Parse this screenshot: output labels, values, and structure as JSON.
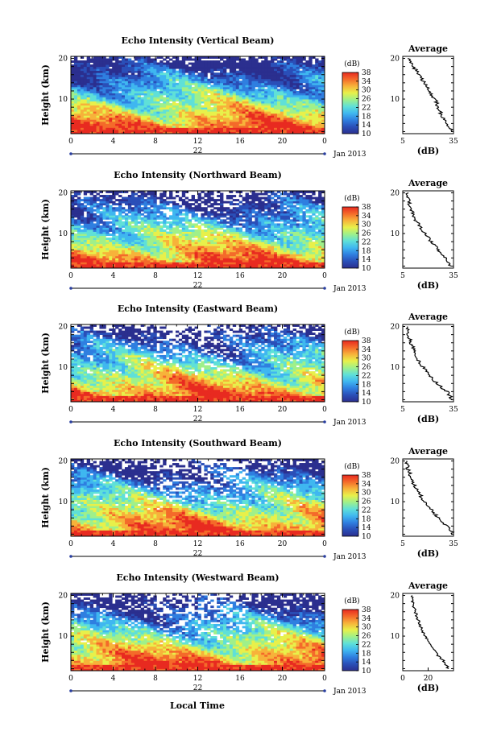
{
  "figure": {
    "x_axis_title": "Local Time",
    "day_label": "22",
    "month_year": "Jan 2013",
    "height_axis_title": "Height (km)",
    "colorbar_unit": "(dB)",
    "colorbar_ticks": [
      "10",
      "14",
      "18",
      "22",
      "26",
      "30",
      "34",
      "38"
    ],
    "average_title": "Average",
    "average_xlabel": "(dB)"
  },
  "colors": {
    "colormap": [
      "#2b2f8f",
      "#2a4fb8",
      "#2f7fe0",
      "#3fb7f0",
      "#5fe0d8",
      "#9ff08a",
      "#e8f04a",
      "#f7b23a",
      "#f46a2a",
      "#e82a20"
    ]
  },
  "chart_data": [
    {
      "type": "heatmap",
      "title": "Echo Intensity (Vertical Beam)",
      "xlabel": "Local Time",
      "ylabel": "Height (km)",
      "x_ticks": [
        "0",
        "4",
        "8",
        "12",
        "16",
        "20",
        "0"
      ],
      "y_ticks": [
        "10",
        "20"
      ],
      "xlim": [
        0,
        24
      ],
      "ylim": [
        1.5,
        20.5
      ],
      "colorbar": {
        "label": "(dB)",
        "range": [
          10,
          38
        ],
        "ticks": [
          10,
          14,
          18,
          22,
          26,
          30,
          34,
          38
        ]
      },
      "gaps": "few",
      "average_profile": {
        "title": "Average",
        "xlabel": "(dB)",
        "x_ticks": [
          "5",
          "35"
        ],
        "xlim": [
          5,
          35
        ],
        "height_km": [
          2,
          3,
          4,
          5,
          6,
          7,
          8,
          9,
          10,
          11,
          12,
          13,
          14,
          15,
          16,
          17,
          18,
          19,
          20
        ],
        "db": [
          35,
          33,
          31,
          29,
          28,
          27,
          26,
          25,
          24,
          22,
          21,
          20,
          18,
          16,
          15,
          13,
          11,
          10,
          8
        ]
      }
    },
    {
      "type": "heatmap",
      "title": "Echo Intensity (Northward Beam)",
      "xlabel": "Local Time",
      "ylabel": "Height (km)",
      "x_ticks": [
        "0",
        "4",
        "8",
        "12",
        "16",
        "20",
        "0"
      ],
      "y_ticks": [
        "10",
        "20"
      ],
      "xlim": [
        0,
        24
      ],
      "ylim": [
        1.5,
        20.5
      ],
      "colorbar": {
        "label": "(dB)",
        "range": [
          10,
          38
        ],
        "ticks": [
          10,
          14,
          18,
          22,
          26,
          30,
          34,
          38
        ]
      },
      "gaps": "some",
      "average_profile": {
        "title": "Average",
        "xlabel": "(dB)",
        "x_ticks": [
          "5",
          "35"
        ],
        "xlim": [
          5,
          35
        ],
        "height_km": [
          2,
          3,
          4,
          5,
          6,
          7,
          8,
          9,
          10,
          11,
          12,
          13,
          14,
          15,
          16,
          17,
          18,
          19,
          20
        ],
        "db": [
          33,
          32,
          31,
          28,
          26,
          24,
          22,
          20,
          18,
          16,
          15,
          13,
          12,
          11,
          10,
          9,
          9,
          8,
          8
        ]
      }
    },
    {
      "type": "heatmap",
      "title": "Echo Intensity (Eastward Beam)",
      "xlabel": "Local Time",
      "ylabel": "Height (km)",
      "x_ticks": [
        "0",
        "4",
        "8",
        "12",
        "16",
        "20",
        "0"
      ],
      "y_ticks": [
        "10",
        "20"
      ],
      "xlim": [
        0,
        24
      ],
      "ylim": [
        1.5,
        20.5
      ],
      "colorbar": {
        "label": "(dB)",
        "range": [
          10,
          38
        ],
        "ticks": [
          10,
          14,
          18,
          22,
          26,
          30,
          34,
          38
        ]
      },
      "gaps": "many",
      "average_profile": {
        "title": "Average",
        "xlabel": "(dB)",
        "x_ticks": [
          "5",
          "35"
        ],
        "xlim": [
          5,
          35
        ],
        "height_km": [
          2,
          3,
          4,
          5,
          6,
          7,
          8,
          9,
          10,
          11,
          12,
          13,
          14,
          15,
          16,
          17,
          18,
          19,
          20
        ],
        "db": [
          34,
          33,
          31,
          28,
          25,
          23,
          21,
          19,
          17,
          15,
          14,
          13,
          12,
          11,
          10,
          9,
          8,
          8,
          7
        ]
      }
    },
    {
      "type": "heatmap",
      "title": "Echo Intensity (Southward Beam)",
      "xlabel": "Local Time",
      "ylabel": "Height (km)",
      "x_ticks": [
        "0",
        "4",
        "8",
        "12",
        "16",
        "20",
        "0"
      ],
      "y_ticks": [
        "10",
        "20"
      ],
      "xlim": [
        0,
        24
      ],
      "ylim": [
        1.5,
        20.5
      ],
      "colorbar": {
        "label": "(dB)",
        "range": [
          10,
          38
        ],
        "ticks": [
          10,
          14,
          18,
          22,
          26,
          30,
          34,
          38
        ]
      },
      "gaps": "many",
      "average_profile": {
        "title": "Average",
        "xlabel": "(dB)",
        "x_ticks": [
          "5",
          "35"
        ],
        "xlim": [
          5,
          35
        ],
        "height_km": [
          2,
          3,
          4,
          5,
          6,
          7,
          8,
          9,
          10,
          11,
          12,
          13,
          14,
          15,
          16,
          17,
          18,
          19,
          20
        ],
        "db": [
          35,
          33,
          31,
          28,
          26,
          24,
          22,
          20,
          18,
          16,
          15,
          13,
          12,
          11,
          10,
          9,
          8,
          8,
          7
        ]
      }
    },
    {
      "type": "heatmap",
      "title": "Echo Intensity (Westward Beam)",
      "xlabel": "Local Time",
      "ylabel": "Height (km)",
      "x_ticks": [
        "0",
        "4",
        "8",
        "12",
        "16",
        "20",
        "0"
      ],
      "y_ticks": [
        "10",
        "20"
      ],
      "xlim": [
        0,
        24
      ],
      "ylim": [
        1.5,
        20.5
      ],
      "colorbar": {
        "label": "(dB)",
        "range": [
          10,
          38
        ],
        "ticks": [
          10,
          14,
          18,
          22,
          26,
          30,
          34,
          38
        ]
      },
      "gaps": "many",
      "average_profile": {
        "title": "Average",
        "xlabel": "(dB)",
        "x_ticks": [
          "0",
          "20"
        ],
        "xlim": [
          0,
          40
        ],
        "height_km": [
          2,
          3,
          4,
          5,
          6,
          7,
          8,
          9,
          10,
          11,
          12,
          13,
          14,
          15,
          16,
          17,
          18,
          19,
          20
        ],
        "db": [
          36,
          34,
          32,
          28,
          26,
          24,
          22,
          20,
          18,
          16,
          15,
          13,
          12,
          11,
          10,
          9,
          8,
          8,
          7
        ]
      }
    }
  ]
}
